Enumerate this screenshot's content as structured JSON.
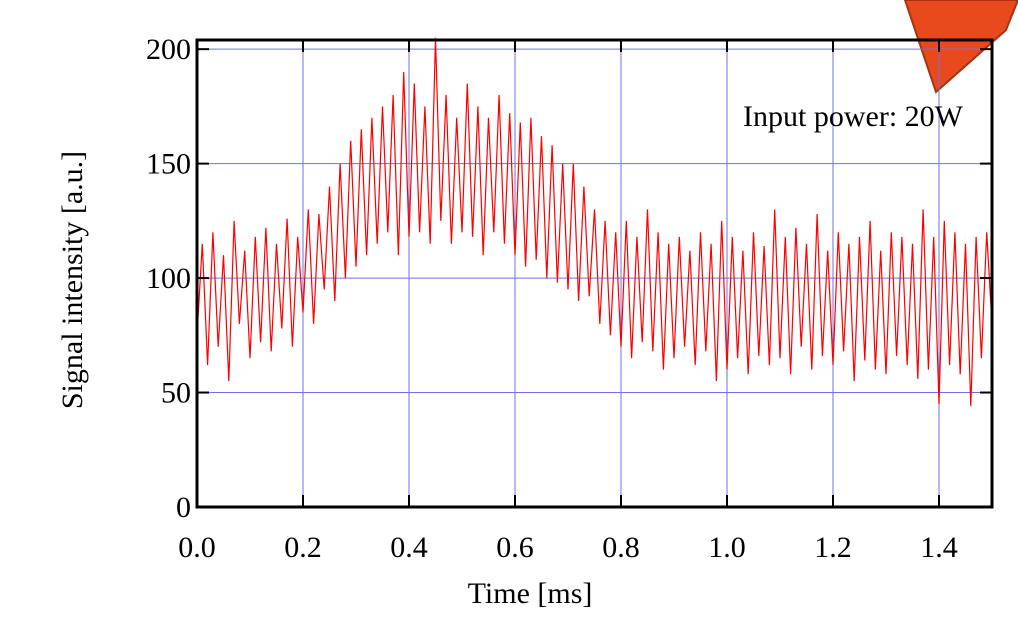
{
  "chart_data": {
    "type": "line",
    "annotation": "Input power: 20W",
    "x_label": "Time [ms]",
    "y_label": "Signal intensity [a.u.]",
    "xlim": [
      0,
      1.5
    ],
    "ylim": [
      0,
      204
    ],
    "xticks": [
      {
        "value": 0,
        "label": "0.0"
      },
      {
        "value": 0.2,
        "label": "0.2"
      },
      {
        "value": 0.4,
        "label": "0.4"
      },
      {
        "value": 0.6,
        "label": "0.6"
      },
      {
        "value": 0.8,
        "label": "0.8"
      },
      {
        "value": 1,
        "label": "1.0"
      },
      {
        "value": 1.2,
        "label": "1.2"
      },
      {
        "value": 1.4,
        "label": "1.4"
      }
    ],
    "yticks": [
      0,
      50,
      100,
      150,
      200
    ],
    "grid": true,
    "grid_color": "#6f6fe8",
    "series": [
      {
        "color": "#ff0000",
        "x": [
          0,
          0.01,
          0.02,
          0.03,
          0.04,
          0.05,
          0.06,
          0.07,
          0.08,
          0.09,
          0.1,
          0.11,
          0.12,
          0.13,
          0.14,
          0.15,
          0.16,
          0.17,
          0.18,
          0.19,
          0.2,
          0.21,
          0.22,
          0.23,
          0.24,
          0.25,
          0.26,
          0.27,
          0.28,
          0.29,
          0.3,
          0.31,
          0.32,
          0.33,
          0.34,
          0.35,
          0.36,
          0.37,
          0.38,
          0.39,
          0.4,
          0.41,
          0.42,
          0.43,
          0.44,
          0.45,
          0.46,
          0.47,
          0.48,
          0.49,
          0.5,
          0.51,
          0.52,
          0.53,
          0.54,
          0.55,
          0.56,
          0.57,
          0.58,
          0.59,
          0.6,
          0.61,
          0.62,
          0.63,
          0.64,
          0.65,
          0.66,
          0.67,
          0.68,
          0.69,
          0.7,
          0.71,
          0.72,
          0.73,
          0.74,
          0.75,
          0.76,
          0.77,
          0.78,
          0.79,
          0.8,
          0.81,
          0.82,
          0.83,
          0.84,
          0.85,
          0.86,
          0.87,
          0.88,
          0.89,
          0.9,
          0.91,
          0.92,
          0.93,
          0.94,
          0.95,
          0.96,
          0.97,
          0.98,
          0.99,
          1,
          1.01,
          1.02,
          1.03,
          1.04,
          1.05,
          1.06,
          1.07,
          1.08,
          1.09,
          1.1,
          1.11,
          1.12,
          1.13,
          1.14,
          1.15,
          1.16,
          1.17,
          1.18,
          1.19,
          1.2,
          1.21,
          1.22,
          1.23,
          1.24,
          1.25,
          1.26,
          1.27,
          1.28,
          1.29,
          1.3,
          1.31,
          1.32,
          1.33,
          1.34,
          1.35,
          1.36,
          1.37,
          1.38,
          1.39,
          1.4,
          1.41,
          1.42,
          1.43,
          1.44,
          1.45,
          1.46,
          1.47,
          1.48,
          1.49,
          1.5
        ],
        "values": [
          75,
          115,
          62,
          120,
          70,
          110,
          55,
          125,
          80,
          112,
          65,
          118,
          72,
          122,
          68,
          115,
          78,
          126,
          70,
          118,
          85,
          130,
          80,
          128,
          95,
          140,
          90,
          150,
          100,
          160,
          105,
          165,
          110,
          170,
          115,
          175,
          120,
          180,
          110,
          190,
          118,
          185,
          120,
          175,
          115,
          205,
          125,
          180,
          115,
          170,
          120,
          185,
          118,
          175,
          110,
          170,
          120,
          180,
          115,
          172,
          110,
          168,
          105,
          170,
          108,
          162,
          100,
          158,
          98,
          150,
          95,
          150,
          90,
          140,
          92,
          130,
          80,
          125,
          75,
          120,
          70,
          125,
          65,
          118,
          72,
          130,
          68,
          120,
          60,
          115,
          65,
          118,
          70,
          112,
          62,
          120,
          68,
          115,
          55,
          125,
          60,
          118,
          65,
          112,
          58,
          120,
          66,
          114,
          62,
          130,
          65,
          118,
          58,
          122,
          70,
          115,
          60,
          128,
          66,
          112,
          62,
          120,
          68,
          115,
          55,
          118,
          64,
          125,
          60,
          112,
          58,
          120,
          66,
          118,
          62,
          115,
          56,
          130,
          60,
          118,
          45,
          125,
          62,
          120,
          58,
          115,
          44,
          118,
          65,
          120,
          80
        ]
      }
    ]
  }
}
